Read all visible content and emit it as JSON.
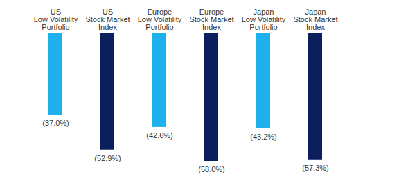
{
  "chart_data": {
    "type": "bar",
    "categories": [
      "US\nLow Volatility\nPortfolio",
      "US\nStock Market\nIndex",
      "Europe\nLow Volatility\nPortfolio",
      "Europe\nStock Market\nIndex",
      "Japan\nLow Volatility\nPortfolio",
      "Japan\nStock Market\nIndex"
    ],
    "values": [
      -37.0,
      -52.9,
      -42.6,
      -58.0,
      -43.2,
      -57.3
    ],
    "value_labels": [
      "(37.0%)",
      "(52.9%)",
      "(42.6%)",
      "(58.0%)",
      "(43.2%)",
      "(57.3%)"
    ],
    "colors": [
      "#1EB1EC",
      "#0B1F5E",
      "#1EB1EC",
      "#0B1F5E",
      "#1EB1EC",
      "#0B1F5E"
    ],
    "ylim": [
      -58.0,
      0
    ],
    "data_labels": true,
    "tick_labels": "x"
  }
}
